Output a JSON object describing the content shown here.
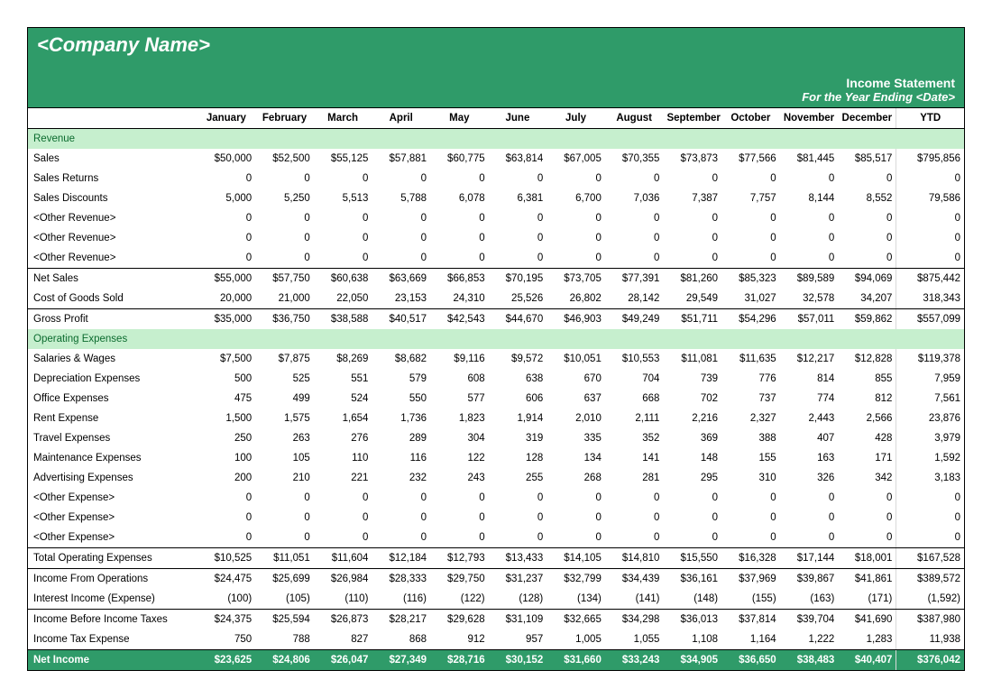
{
  "colors": {
    "header_bg": "#2f9b69",
    "header_text": "#ffffff",
    "section_bg": "#c6efce",
    "section_text": "#0b6b2e",
    "netincome_bg": "#2f9b69",
    "netincome_text": "#ffffff",
    "border": "#000000"
  },
  "header": {
    "company": "<Company Name>",
    "title": "Income Statement",
    "subtitle": "For the Year Ending <Date>"
  },
  "columns": [
    "",
    "January",
    "February",
    "March",
    "April",
    "May",
    "June",
    "July",
    "August",
    "September",
    "October",
    "November",
    "December",
    "YTD"
  ],
  "sections": [
    {
      "type": "section",
      "label": "Revenue"
    },
    {
      "type": "row",
      "label": "Sales",
      "fmt": "dollar",
      "vals": [
        "$50,000",
        "$52,500",
        "$55,125",
        "$57,881",
        "$60,775",
        "$63,814",
        "$67,005",
        "$70,355",
        "$73,873",
        "$77,566",
        "$81,445",
        "$85,517",
        "$795,856"
      ]
    },
    {
      "type": "row",
      "label": "Sales Returns",
      "vals": [
        "0",
        "0",
        "0",
        "0",
        "0",
        "0",
        "0",
        "0",
        "0",
        "0",
        "0",
        "0",
        "0"
      ]
    },
    {
      "type": "row",
      "label": "Sales Discounts",
      "vals": [
        "5,000",
        "5,250",
        "5,513",
        "5,788",
        "6,078",
        "6,381",
        "6,700",
        "7,036",
        "7,387",
        "7,757",
        "8,144",
        "8,552",
        "79,586"
      ]
    },
    {
      "type": "row",
      "label": "<Other Revenue>",
      "vals": [
        "0",
        "0",
        "0",
        "0",
        "0",
        "0",
        "0",
        "0",
        "0",
        "0",
        "0",
        "0",
        "0"
      ]
    },
    {
      "type": "row",
      "label": "<Other Revenue>",
      "vals": [
        "0",
        "0",
        "0",
        "0",
        "0",
        "0",
        "0",
        "0",
        "0",
        "0",
        "0",
        "0",
        "0"
      ]
    },
    {
      "type": "row",
      "label": "<Other Revenue>",
      "vals": [
        "0",
        "0",
        "0",
        "0",
        "0",
        "0",
        "0",
        "0",
        "0",
        "0",
        "0",
        "0",
        "0"
      ],
      "border": "bot"
    },
    {
      "type": "row",
      "label": "Net Sales",
      "fmt": "dollar",
      "vals": [
        "$55,000",
        "$57,750",
        "$60,638",
        "$63,669",
        "$66,853",
        "$70,195",
        "$73,705",
        "$77,391",
        "$81,260",
        "$85,323",
        "$89,589",
        "$94,069",
        "$875,442"
      ],
      "border": "top"
    },
    {
      "type": "row",
      "label": "Cost of Goods Sold",
      "vals": [
        "20,000",
        "21,000",
        "22,050",
        "23,153",
        "24,310",
        "25,526",
        "26,802",
        "28,142",
        "29,549",
        "31,027",
        "32,578",
        "34,207",
        "318,343"
      ],
      "border": "bot"
    },
    {
      "type": "row",
      "label": "Gross Profit",
      "fmt": "dollar",
      "vals": [
        "$35,000",
        "$36,750",
        "$38,588",
        "$40,517",
        "$42,543",
        "$44,670",
        "$46,903",
        "$49,249",
        "$51,711",
        "$54,296",
        "$57,011",
        "$59,862",
        "$557,099"
      ],
      "border": "top"
    },
    {
      "type": "section",
      "label": "Operating Expenses"
    },
    {
      "type": "row",
      "label": "Salaries & Wages",
      "fmt": "dollar",
      "vals": [
        "$7,500",
        "$7,875",
        "$8,269",
        "$8,682",
        "$9,116",
        "$9,572",
        "$10,051",
        "$10,553",
        "$11,081",
        "$11,635",
        "$12,217",
        "$12,828",
        "$119,378"
      ]
    },
    {
      "type": "row",
      "label": "Depreciation Expenses",
      "vals": [
        "500",
        "525",
        "551",
        "579",
        "608",
        "638",
        "670",
        "704",
        "739",
        "776",
        "814",
        "855",
        "7,959"
      ]
    },
    {
      "type": "row",
      "label": "Office Expenses",
      "vals": [
        "475",
        "499",
        "524",
        "550",
        "577",
        "606",
        "637",
        "668",
        "702",
        "737",
        "774",
        "812",
        "7,561"
      ]
    },
    {
      "type": "row",
      "label": "Rent Expense",
      "vals": [
        "1,500",
        "1,575",
        "1,654",
        "1,736",
        "1,823",
        "1,914",
        "2,010",
        "2,111",
        "2,216",
        "2,327",
        "2,443",
        "2,566",
        "23,876"
      ]
    },
    {
      "type": "row",
      "label": "Travel Expenses",
      "vals": [
        "250",
        "263",
        "276",
        "289",
        "304",
        "319",
        "335",
        "352",
        "369",
        "388",
        "407",
        "428",
        "3,979"
      ]
    },
    {
      "type": "row",
      "label": "Maintenance Expenses",
      "vals": [
        "100",
        "105",
        "110",
        "116",
        "122",
        "128",
        "134",
        "141",
        "148",
        "155",
        "163",
        "171",
        "1,592"
      ]
    },
    {
      "type": "row",
      "label": "Advertising Expenses",
      "vals": [
        "200",
        "210",
        "221",
        "232",
        "243",
        "255",
        "268",
        "281",
        "295",
        "310",
        "326",
        "342",
        "3,183"
      ]
    },
    {
      "type": "row",
      "label": "<Other Expense>",
      "vals": [
        "0",
        "0",
        "0",
        "0",
        "0",
        "0",
        "0",
        "0",
        "0",
        "0",
        "0",
        "0",
        "0"
      ]
    },
    {
      "type": "row",
      "label": "<Other Expense>",
      "vals": [
        "0",
        "0",
        "0",
        "0",
        "0",
        "0",
        "0",
        "0",
        "0",
        "0",
        "0",
        "0",
        "0"
      ]
    },
    {
      "type": "row",
      "label": "<Other Expense>",
      "vals": [
        "0",
        "0",
        "0",
        "0",
        "0",
        "0",
        "0",
        "0",
        "0",
        "0",
        "0",
        "0",
        "0"
      ],
      "border": "bot"
    },
    {
      "type": "row",
      "label": "Total Operating Expenses",
      "fmt": "dollar",
      "vals": [
        "$10,525",
        "$11,051",
        "$11,604",
        "$12,184",
        "$12,793",
        "$13,433",
        "$14,105",
        "$14,810",
        "$15,550",
        "$16,328",
        "$17,144",
        "$18,001",
        "$167,528"
      ],
      "border": "topbot"
    },
    {
      "type": "row",
      "label": "Income From Operations",
      "fmt": "dollar",
      "vals": [
        "$24,475",
        "$25,699",
        "$26,984",
        "$28,333",
        "$29,750",
        "$31,237",
        "$32,799",
        "$34,439",
        "$36,161",
        "$37,969",
        "$39,867",
        "$41,861",
        "$389,572"
      ]
    },
    {
      "type": "row",
      "label": "Interest Income (Expense)",
      "vals": [
        "(100)",
        "(105)",
        "(110)",
        "(116)",
        "(122)",
        "(128)",
        "(134)",
        "(141)",
        "(148)",
        "(155)",
        "(163)",
        "(171)",
        "(1,592)"
      ],
      "border": "bot"
    },
    {
      "type": "row",
      "label": "Income Before Income Taxes",
      "fmt": "dollar",
      "vals": [
        "$24,375",
        "$25,594",
        "$26,873",
        "$28,217",
        "$29,628",
        "$31,109",
        "$32,665",
        "$34,298",
        "$36,013",
        "$37,814",
        "$39,704",
        "$41,690",
        "$387,980"
      ],
      "border": "top"
    },
    {
      "type": "row",
      "label": "Income Tax Expense",
      "vals": [
        "750",
        "788",
        "827",
        "868",
        "912",
        "957",
        "1,005",
        "1,055",
        "1,108",
        "1,164",
        "1,222",
        "1,283",
        "11,938"
      ],
      "border": "bot"
    },
    {
      "type": "netincome",
      "label": "Net Income",
      "fmt": "dollar",
      "vals": [
        "$23,625",
        "$24,806",
        "$26,047",
        "$27,349",
        "$28,716",
        "$30,152",
        "$31,660",
        "$33,243",
        "$34,905",
        "$36,650",
        "$38,483",
        "$40,407",
        "$376,042"
      ]
    }
  ]
}
